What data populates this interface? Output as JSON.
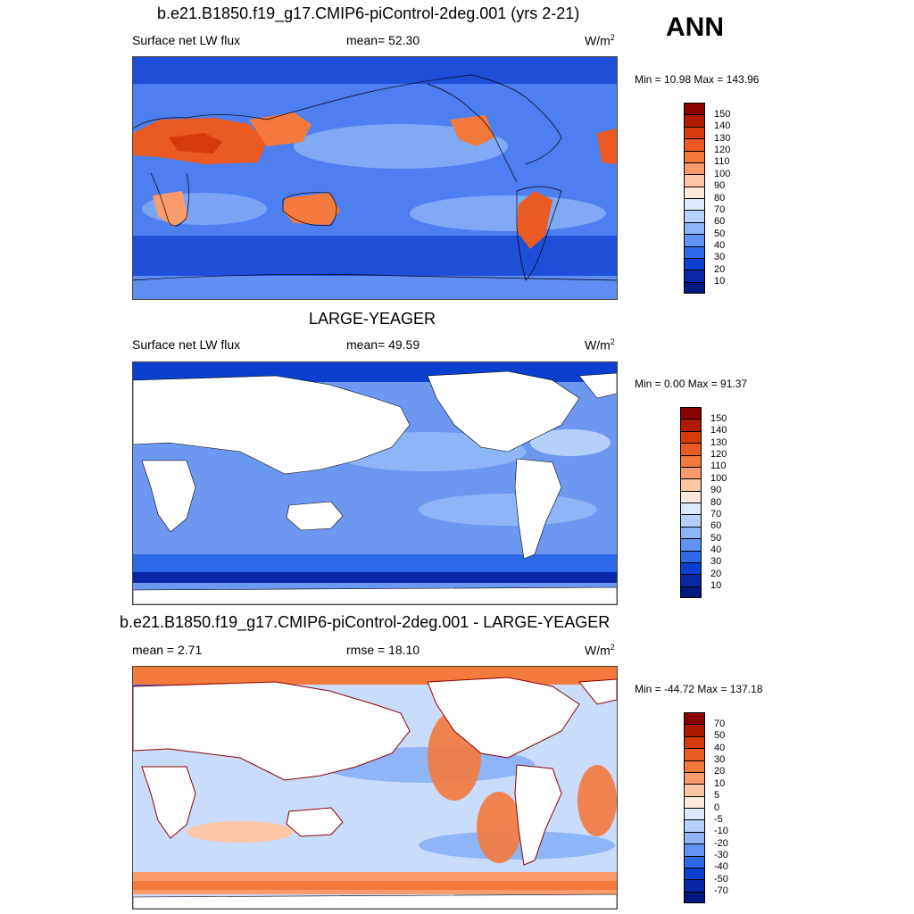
{
  "season": "ANN",
  "panels": [
    {
      "title": "b.e21.B1850.f19_g17.CMIP6-piControl-2deg.001 (yrs 2-21)",
      "left_label": "Surface net LW flux",
      "center_label": "mean=  52.30",
      "units": "W/m",
      "units_sup": "2",
      "minmax": "Min =  10.98 Max = 143.96",
      "colorbar": {
        "labels": [
          "150",
          "140",
          "130",
          "120",
          "110",
          "100",
          "90",
          "80",
          "70",
          "60",
          "50",
          "40",
          "30",
          "20",
          "10"
        ],
        "colors": [
          "#8b0000",
          "#b01a00",
          "#d63a0a",
          "#ea5a22",
          "#f4793d",
          "#fa9b6c",
          "#fdc7a6",
          "#fde9dc",
          "#dce9fb",
          "#b5d0fb",
          "#8db5f8",
          "#5f93f4",
          "#2e69e8",
          "#0a3fcf",
          "#0826a6",
          "#001a80"
        ]
      },
      "map": {
        "ocean": "#4d7ff0",
        "land_mode": "filled"
      }
    },
    {
      "title": "LARGE-YEAGER",
      "left_label": "Surface net LW flux",
      "center_label": "mean=  49.59",
      "units": "W/m",
      "units_sup": "2",
      "minmax": "Min =   0.00 Max =  91.37",
      "colorbar": {
        "labels": [
          "150",
          "140",
          "130",
          "120",
          "110",
          "100",
          "90",
          "80",
          "70",
          "60",
          "50",
          "40",
          "30",
          "20",
          "10"
        ],
        "colors": [
          "#8b0000",
          "#b01a00",
          "#d63a0a",
          "#ea5a22",
          "#f4793d",
          "#fa9b6c",
          "#fdc7a6",
          "#fde9dc",
          "#dce9fb",
          "#b5d0fb",
          "#8db5f8",
          "#5f93f4",
          "#2e69e8",
          "#0a3fcf",
          "#0826a6",
          "#001a80"
        ]
      },
      "map": {
        "ocean": "#6d98f2",
        "land_mode": "white"
      }
    },
    {
      "title": "b.e21.B1850.f19_g17.CMIP6-piControl-2deg.001 - LARGE-YEAGER",
      "left_label": "mean =   2.71",
      "center_label": "rmse =  18.10",
      "units": "W/m",
      "units_sup": "2",
      "minmax": "Min = -44.72 Max = 137.18",
      "colorbar": {
        "labels": [
          "70",
          "50",
          "40",
          "30",
          "20",
          "10",
          "5",
          "0",
          "-5",
          "-10",
          "-20",
          "-30",
          "-40",
          "-50",
          "-70"
        ],
        "colors": [
          "#8b0000",
          "#b01a00",
          "#d63a0a",
          "#ea5a22",
          "#f4793d",
          "#fa9b6c",
          "#fdc7a6",
          "#fde9dc",
          "#dce9fb",
          "#b5d0fb",
          "#8db5f8",
          "#5f93f4",
          "#2e69e8",
          "#0a3fcf",
          "#0826a6",
          "#001a80"
        ]
      },
      "map": {
        "ocean": "#c9dcfb",
        "land_mode": "white"
      }
    }
  ]
}
